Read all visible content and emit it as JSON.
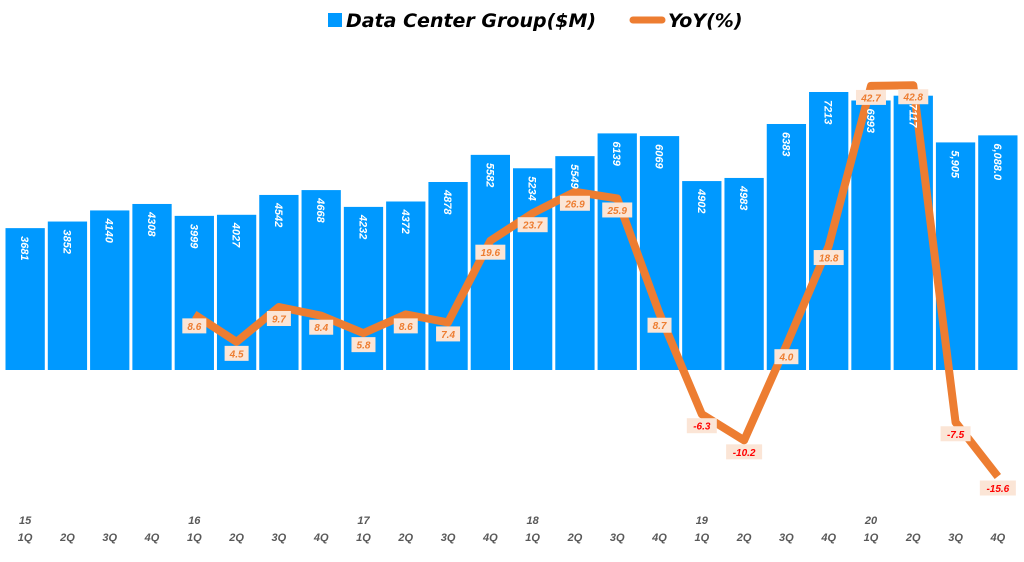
{
  "chart_data": {
    "type": "bar+line",
    "title": "",
    "legend_position": "top",
    "grid": false,
    "colors": {
      "bar": "#0099FF",
      "line": "#ED7D31",
      "label_bg": "#FBE5D6",
      "negative_label": "#FF0000"
    },
    "categories": [
      {
        "year": "15",
        "q": "1Q"
      },
      {
        "year": "",
        "q": "2Q"
      },
      {
        "year": "",
        "q": "3Q"
      },
      {
        "year": "",
        "q": "4Q"
      },
      {
        "year": "16",
        "q": "1Q"
      },
      {
        "year": "",
        "q": "2Q"
      },
      {
        "year": "",
        "q": "3Q"
      },
      {
        "year": "",
        "q": "4Q"
      },
      {
        "year": "17",
        "q": "1Q"
      },
      {
        "year": "",
        "q": "2Q"
      },
      {
        "year": "",
        "q": "3Q"
      },
      {
        "year": "",
        "q": "4Q"
      },
      {
        "year": "18",
        "q": "1Q"
      },
      {
        "year": "",
        "q": "2Q"
      },
      {
        "year": "",
        "q": "3Q"
      },
      {
        "year": "",
        "q": "4Q"
      },
      {
        "year": "19",
        "q": "1Q"
      },
      {
        "year": "",
        "q": "2Q"
      },
      {
        "year": "",
        "q": "3Q"
      },
      {
        "year": "",
        "q": "4Q"
      },
      {
        "year": "20",
        "q": "1Q"
      },
      {
        "year": "",
        "q": "2Q"
      },
      {
        "year": "",
        "q": "3Q"
      },
      {
        "year": "",
        "q": "4Q"
      }
    ],
    "series": [
      {
        "name": "Data Center Group($M)",
        "type": "bar",
        "values": [
          3681,
          3852,
          4140,
          4308,
          3999,
          4027,
          4542,
          4668,
          4232,
          4372,
          4878,
          5582,
          5234,
          5549,
          6139,
          6069,
          4902,
          4983,
          6383,
          7213,
          6993,
          7117,
          5905,
          6088.0
        ],
        "labels": [
          "3681",
          "3852",
          "4140",
          "4308",
          "3999",
          "4027",
          "4542",
          "4668",
          "4232",
          "4372",
          "4878",
          "5582",
          "5234",
          "5549",
          "6139",
          "6069",
          "4902",
          "4983",
          "6383",
          "7213",
          "6993",
          "7117",
          "5,905",
          "6,088.0"
        ]
      },
      {
        "name": "YoY(%)",
        "type": "line",
        "values": [
          null,
          null,
          null,
          null,
          8.6,
          4.5,
          9.7,
          8.4,
          5.8,
          8.6,
          7.4,
          19.6,
          23.7,
          26.9,
          25.9,
          8.7,
          -6.3,
          -10.2,
          4.0,
          18.8,
          42.7,
          42.8,
          -7.5,
          -15.6
        ],
        "labels": [
          "",
          "",
          "",
          "",
          "8.6",
          "4.5",
          "9.7",
          "8.4",
          "5.8",
          "8.6",
          "7.4",
          "19.6",
          "23.7",
          "26.9",
          "25.9",
          "8.7",
          "-6.3",
          "-10.2",
          "4.0",
          "18.8",
          "42.7",
          "42.8",
          "-7.5",
          "-15.6"
        ]
      }
    ],
    "ylim": [
      0,
      9600
    ],
    "y2lim": [
      -20,
      55
    ]
  }
}
